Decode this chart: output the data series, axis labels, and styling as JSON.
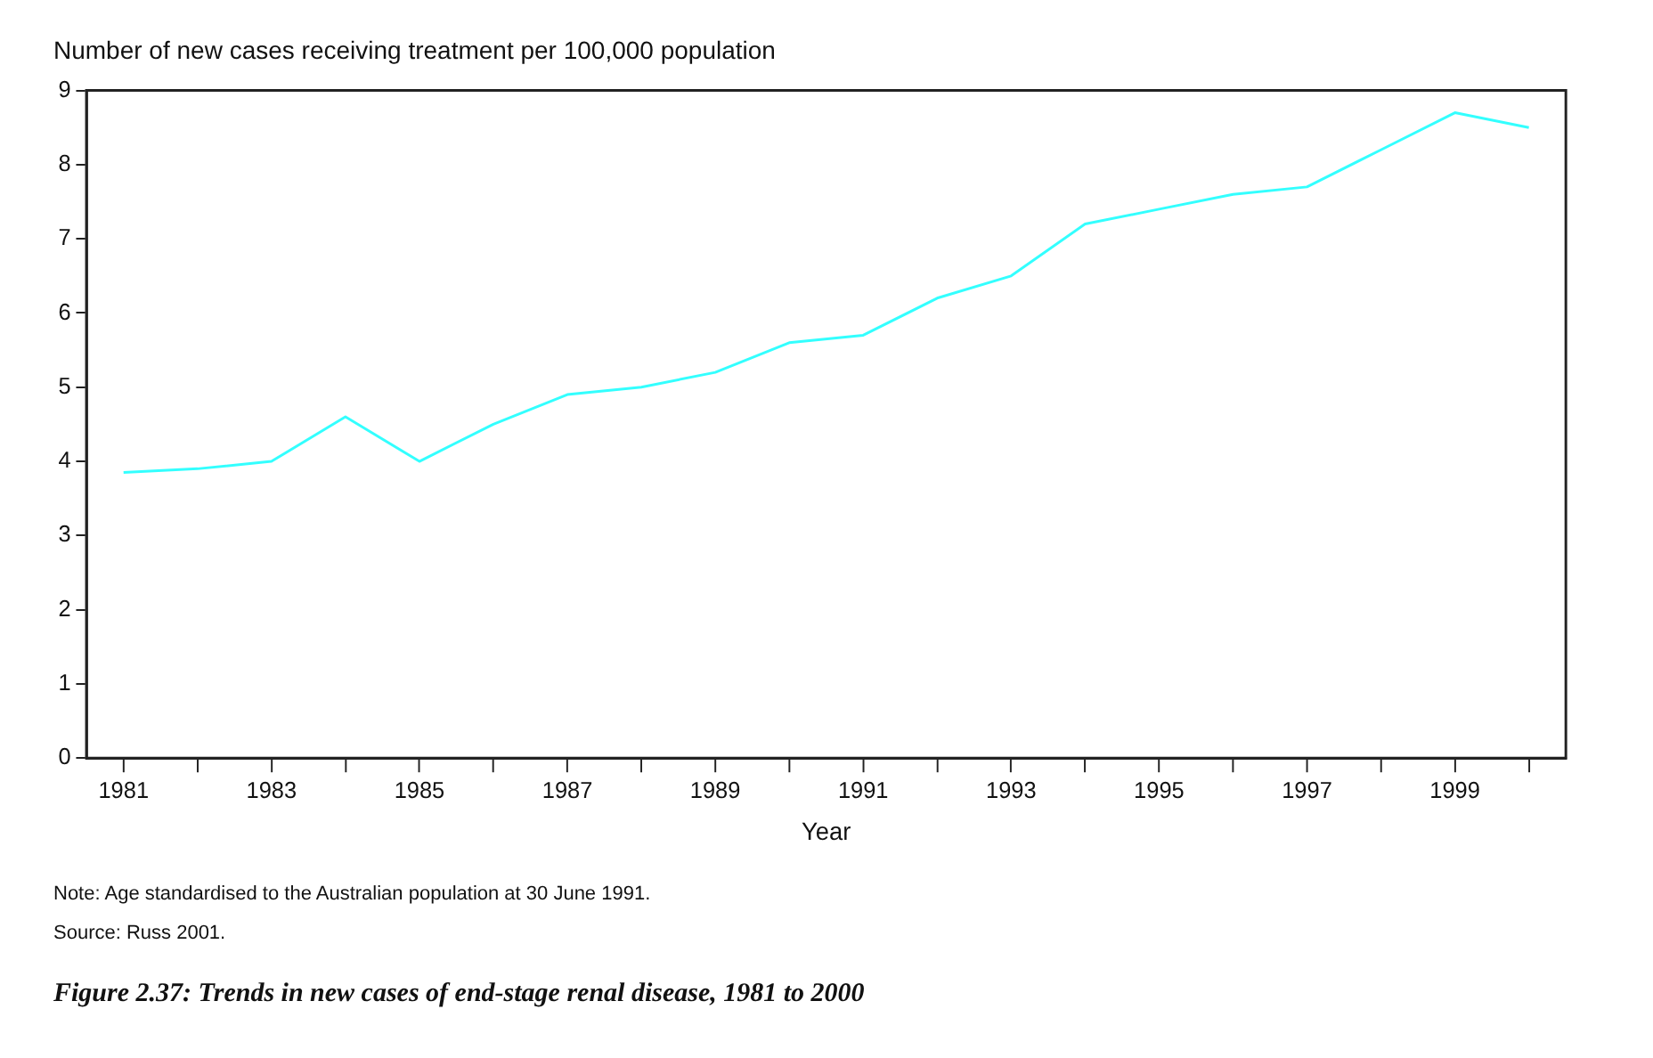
{
  "chart_data": {
    "type": "line",
    "title": "Figure 2.37: Trends in new cases of end-stage renal disease, 1981 to 2000",
    "ylabel": "Number of new cases receiving treatment per 100,000 population",
    "xlabel": "Year",
    "x": [
      1981,
      1982,
      1983,
      1984,
      1985,
      1986,
      1987,
      1988,
      1989,
      1990,
      1991,
      1992,
      1993,
      1994,
      1995,
      1996,
      1997,
      1998,
      1999,
      2000
    ],
    "series": [
      {
        "color": "#33ffff",
        "values": [
          3.85,
          3.9,
          4.0,
          4.6,
          4.0,
          4.5,
          4.9,
          5.0,
          5.2,
          5.6,
          5.7,
          6.2,
          6.5,
          7.2,
          7.4,
          7.6,
          7.7,
          8.2,
          8.7,
          8.5
        ]
      }
    ],
    "xlim": [
      1980.5,
      2000.5
    ],
    "xticks": [
      1981,
      {
        "value": 1982,
        "label": null
      },
      1983,
      {
        "value": 1984,
        "label": null
      },
      1985,
      {
        "value": 1986,
        "label": null
      },
      1987,
      {
        "value": 1988,
        "label": null
      },
      1989,
      {
        "value": 1990,
        "label": null
      },
      1991,
      {
        "value": 1992,
        "label": null
      },
      1993,
      {
        "value": 1994,
        "label": null
      },
      1995,
      {
        "value": 1996,
        "label": null
      },
      1997,
      {
        "value": 1998,
        "label": null
      },
      1999,
      {
        "value": 2000,
        "label": null
      }
    ],
    "ylim": [
      0,
      9
    ],
    "yticks": [
      0,
      1,
      2,
      3,
      4,
      5,
      6,
      7,
      8,
      9
    ],
    "grid": false,
    "legend": false,
    "marker": "none",
    "line_style": "solid",
    "annotations": [
      "Note: Age standardised to the Australian population at 30 June 1991.",
      "Source: Russ 2001."
    ]
  }
}
